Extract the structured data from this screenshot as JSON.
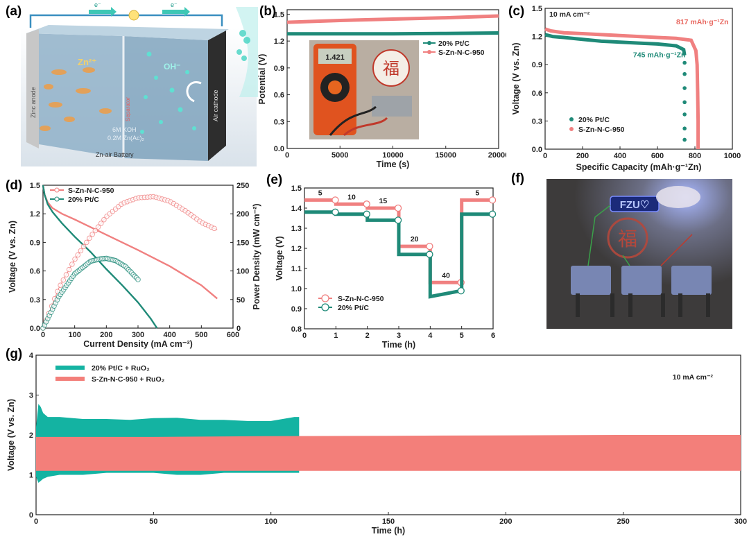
{
  "panel_labels": {
    "a": "(a)",
    "b": "(b)",
    "c": "(c)",
    "d": "(d)",
    "e": "(e)",
    "f": "(f)",
    "g": "(g)"
  },
  "colors": {
    "teal": "#1f8a78",
    "red": "#f08080",
    "red_dark": "#e8665e",
    "teal_g": "#14b3a2",
    "red_g": "#f37f7a"
  },
  "schematic": {
    "zn_anode": "Zinc anode",
    "separator": "Separator",
    "air_cathode": "Air cathode",
    "zn_ion": "Zn²⁺",
    "oh_ion": "OH⁻",
    "electrolyte_1": "6M KOH",
    "electrolyte_2": "0.2M Zn(Ac)₂",
    "battery_name": "Zn-air Battery",
    "electron_left": "e⁻",
    "electron_right": "e⁻"
  },
  "photo_b": {
    "display_reading": "1.421",
    "seal_char": "福"
  },
  "photo_f": {
    "badge_text": "FZU♡",
    "seal_char": "福"
  },
  "chart_data": [
    {
      "id": "b",
      "type": "line",
      "xlabel": "Time (s)",
      "ylabel": "Potential (V)",
      "xlim": [
        0,
        20000
      ],
      "ylim": [
        0,
        1.55
      ],
      "xticks": [
        0,
        5000,
        10000,
        15000,
        20000
      ],
      "yticks": [
        0.0,
        0.3,
        0.6,
        0.9,
        1.2,
        1.5
      ],
      "ytick_labels": [
        "0.0",
        "0.3",
        "0.6",
        "0.9",
        "1.2",
        "1.5"
      ],
      "legend_position": "right, middle",
      "series": [
        {
          "name": "20% Pt/C",
          "color": "#1f8a78",
          "x": [
            0,
            5000,
            10000,
            15000,
            20000
          ],
          "y": [
            1.28,
            1.28,
            1.28,
            1.285,
            1.29
          ]
        },
        {
          "name": "S-Zn-N-C-950",
          "color": "#f08080",
          "x": [
            0,
            5000,
            10000,
            15000,
            20000
          ],
          "y": [
            1.41,
            1.43,
            1.445,
            1.46,
            1.48
          ]
        }
      ]
    },
    {
      "id": "c",
      "type": "line",
      "title": "10 mA cm⁻²",
      "xlabel": "Specific Capacity (mAh·g⁻¹Zn)",
      "ylabel": "Voltage (V vs. Zn)",
      "xlim": [
        0,
        1000
      ],
      "ylim": [
        0,
        1.5
      ],
      "xticks": [
        0,
        200,
        400,
        600,
        800,
        1000
      ],
      "yticks": [
        0.0,
        0.3,
        0.6,
        0.9,
        1.2,
        1.5
      ],
      "ytick_labels": [
        "0.0",
        "0.3",
        "0.6",
        "0.9",
        "1.2",
        "1.5"
      ],
      "legend_position": "bottom-left",
      "annotations": [
        {
          "text": "817 mAh·g⁻¹Zn",
          "series": "S-Zn-N-C-950"
        },
        {
          "text": "745 mAh·g⁻¹Zn",
          "series": "20% Pt/C"
        }
      ],
      "series": [
        {
          "name": "20% Pt/C",
          "color": "#1f8a78",
          "x": [
            0,
            40,
            100,
            200,
            300,
            400,
            500,
            600,
            700,
            740,
            745,
            745,
            745,
            745,
            745,
            745,
            745,
            745
          ],
          "y": [
            1.22,
            1.2,
            1.19,
            1.17,
            1.15,
            1.14,
            1.13,
            1.12,
            1.1,
            1.06,
            1.0,
            0.92,
            0.8,
            0.65,
            0.5,
            0.37,
            0.22,
            0.1
          ]
        },
        {
          "name": "S-Zn-N-C-950",
          "color": "#f08080",
          "x": [
            0,
            30,
            100,
            200,
            300,
            400,
            500,
            600,
            700,
            780,
            805,
            812,
            815,
            817,
            817,
            817
          ],
          "y": [
            1.28,
            1.26,
            1.24,
            1.23,
            1.22,
            1.21,
            1.2,
            1.19,
            1.18,
            1.16,
            1.05,
            0.9,
            0.6,
            0.3,
            0.1,
            0.0
          ]
        }
      ]
    },
    {
      "id": "d",
      "type": "line",
      "xlabel": "Current Density (mA cm⁻²)",
      "ylabel": "Voltage (V vs. Zn)",
      "y2label": "Power Density (mW cm⁻²)",
      "xlim": [
        0,
        600
      ],
      "ylim": [
        0,
        1.5
      ],
      "y2lim": [
        0,
        250
      ],
      "xticks": [
        0,
        100,
        200,
        300,
        400,
        500,
        600
      ],
      "yticks": [
        0.0,
        0.3,
        0.6,
        0.9,
        1.2,
        1.5
      ],
      "ytick_labels": [
        "0.0",
        "0.3",
        "0.6",
        "0.9",
        "1.2",
        "1.5"
      ],
      "y2ticks": [
        0,
        50,
        100,
        150,
        200,
        250
      ],
      "legend_position": "top-left",
      "series": [
        {
          "name": "S-Zn-N-C-950",
          "color": "#f08080",
          "axis": "left",
          "x": [
            0,
            5,
            15,
            30,
            60,
            100,
            200,
            300,
            400,
            500,
            550
          ],
          "y": [
            1.5,
            1.4,
            1.32,
            1.26,
            1.2,
            1.14,
            0.98,
            0.82,
            0.65,
            0.45,
            0.31
          ]
        },
        {
          "name": "20% Pt/C",
          "color": "#1f8a78",
          "axis": "left",
          "x": [
            0,
            5,
            15,
            30,
            60,
            100,
            150,
            200,
            250,
            300,
            340,
            360
          ],
          "y": [
            1.5,
            1.4,
            1.3,
            1.22,
            1.1,
            0.96,
            0.8,
            0.62,
            0.45,
            0.27,
            0.1,
            0.0
          ]
        },
        {
          "name": "S-Zn-N-C-950 power",
          "color": "#f08080",
          "axis": "right",
          "marker": "hollow",
          "x": [
            0,
            50,
            100,
            150,
            200,
            250,
            300,
            350,
            400,
            450,
            500,
            550
          ],
          "y": [
            0,
            70,
            120,
            160,
            195,
            218,
            228,
            230,
            222,
            205,
            185,
            172
          ]
        },
        {
          "name": "20% Pt/C power",
          "color": "#1f8a78",
          "axis": "right",
          "marker": "hollow",
          "x": [
            0,
            50,
            100,
            150,
            180,
            200,
            230,
            260,
            300
          ],
          "y": [
            0,
            55,
            95,
            117,
            121,
            122,
            118,
            108,
            85
          ]
        }
      ]
    },
    {
      "id": "e",
      "type": "line",
      "xlabel": "Time (h)",
      "ylabel": "Voltage (V)",
      "xlim": [
        0,
        6
      ],
      "ylim": [
        0.8,
        1.5
      ],
      "xticks": [
        0,
        1,
        2,
        3,
        4,
        5,
        6
      ],
      "yticks": [
        0.8,
        0.9,
        1.0,
        1.1,
        1.2,
        1.3,
        1.4,
        1.5
      ],
      "ytick_labels": [
        "0.8",
        "0.9",
        "1.0",
        "1.1",
        "1.2",
        "1.3",
        "1.4",
        "1.5"
      ],
      "legend_position": "bottom-left",
      "step_labels": [
        "5",
        "10",
        "15",
        "20",
        "40",
        "5"
      ],
      "series": [
        {
          "name": "S-Zn-N-C-950",
          "color": "#f08080",
          "marker": "hollow",
          "x": [
            0,
            1,
            1,
            2,
            2,
            3,
            3,
            4,
            4,
            5,
            5,
            6
          ],
          "y": [
            1.44,
            1.44,
            1.42,
            1.42,
            1.4,
            1.4,
            1.21,
            1.21,
            1.03,
            1.03,
            1.44,
            1.44
          ]
        },
        {
          "name": "20% Pt/C",
          "color": "#1f8a78",
          "marker": "hollow",
          "x": [
            0,
            1,
            1,
            2,
            2,
            3,
            3,
            4,
            4,
            5,
            5,
            6
          ],
          "y": [
            1.38,
            1.38,
            1.37,
            1.37,
            1.34,
            1.34,
            1.17,
            1.17,
            0.96,
            0.99,
            1.37,
            1.37
          ]
        }
      ]
    },
    {
      "id": "g",
      "type": "area",
      "title": "10 mA cm⁻²",
      "xlabel": "Time (h)",
      "ylabel": "Voltage (V vs. Zn)",
      "xlim": [
        0,
        300
      ],
      "ylim": [
        0,
        4
      ],
      "xticks": [
        0,
        50,
        100,
        150,
        200,
        250,
        300
      ],
      "yticks": [
        0,
        1,
        2,
        3,
        4
      ],
      "legend_position": "top-left",
      "series": [
        {
          "name": "20% Pt/C + RuO₂",
          "color": "#14b3a2",
          "x": [
            0,
            1,
            2,
            3,
            5,
            10,
            20,
            30,
            40,
            50,
            60,
            70,
            80,
            90,
            100,
            110,
            112
          ],
          "y_upper": [
            2.2,
            2.78,
            2.7,
            2.55,
            2.45,
            2.45,
            2.4,
            2.4,
            2.38,
            2.42,
            2.43,
            2.38,
            2.38,
            2.35,
            2.35,
            2.45,
            2.45
          ],
          "y_lower": [
            0.95,
            0.8,
            0.85,
            0.9,
            0.95,
            1.0,
            1.0,
            1.05,
            1.05,
            1.05,
            1.0,
            1.0,
            1.05,
            1.05,
            1.05,
            1.05,
            1.05
          ]
        },
        {
          "name": "S-Zn-N-C-950 + RuO₂",
          "color": "#f37f7a",
          "x": [
            0,
            50,
            100,
            150,
            200,
            250,
            300
          ],
          "y_upper": [
            1.95,
            1.95,
            1.97,
            1.98,
            1.99,
            2.0,
            2.0
          ],
          "y_lower": [
            1.1,
            1.1,
            1.1,
            1.1,
            1.1,
            1.1,
            1.1
          ]
        }
      ]
    }
  ]
}
